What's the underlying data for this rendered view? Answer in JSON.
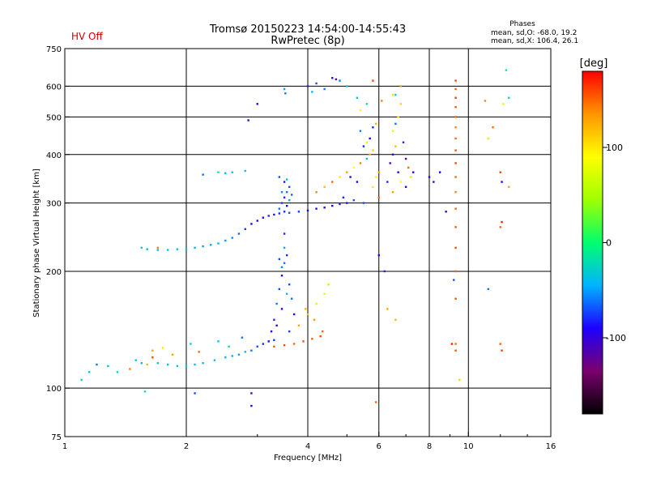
{
  "header": {
    "title_line1": "Tromsø 20150223 14:54:00-14:55:43",
    "title_line2": "RwPretec (8p)",
    "hv_status": "HV Off",
    "phases_label": "Phases",
    "phases_o": "mean, sd,O: -68.0, 19.2",
    "phases_x": "mean, sd,X: 106.4, 26.1"
  },
  "colorbar": {
    "unit_label": "[deg]",
    "range": [
      -180,
      180
    ],
    "ticks": [
      {
        "value": 100,
        "label": "100"
      },
      {
        "value": 0,
        "label": "0"
      },
      {
        "value": -100,
        "label": "-100"
      }
    ],
    "colors": [
      "#000000",
      "#7a006e",
      "#1e00ff",
      "#00b4ff",
      "#00ff6e",
      "#a0ff00",
      "#ffff00",
      "#ff9600",
      "#ff0000"
    ]
  },
  "chart_data": {
    "type": "scatter",
    "title": "Tromsø 20150223 14:54:00-14:55:43",
    "subtitle": "RwPretec (8p)",
    "xlabel": "Frequency [MHz]",
    "ylabel": "Stationary phase Virtual Height [km]",
    "x_scale": "log",
    "y_scale": "log",
    "xlim": [
      1,
      16
    ],
    "ylim": [
      75,
      750
    ],
    "x_ticks": [
      {
        "value": 1,
        "label": "1"
      },
      {
        "value": 2,
        "label": "2"
      },
      {
        "value": 4,
        "label": "4"
      },
      {
        "value": 6,
        "label": "6"
      },
      {
        "value": 8,
        "label": "8"
      },
      {
        "value": 10,
        "label": "10"
      },
      {
        "value": 16,
        "label": "16"
      }
    ],
    "y_ticks": [
      {
        "value": 75,
        "label": "75"
      },
      {
        "value": 100,
        "label": "100"
      },
      {
        "value": 200,
        "label": "200"
      },
      {
        "value": 300,
        "label": "300"
      },
      {
        "value": 400,
        "label": "400"
      },
      {
        "value": 500,
        "label": "500"
      },
      {
        "value": 600,
        "label": "600"
      },
      {
        "value": 750,
        "label": "750"
      }
    ],
    "grid_x": [
      2,
      4,
      6,
      8,
      10
    ],
    "grid_y": [
      100,
      200,
      300,
      400,
      500,
      600
    ],
    "color_by": "phase_deg",
    "series": [
      {
        "points": [
          [
            1.1,
            105,
            -30
          ],
          [
            1.15,
            110,
            -40
          ],
          [
            1.2,
            115,
            -60
          ],
          [
            1.28,
            114,
            -35
          ],
          [
            1.35,
            110,
            -25
          ],
          [
            1.45,
            112,
            140
          ],
          [
            1.5,
            118,
            -30
          ],
          [
            1.55,
            116,
            -40
          ],
          [
            1.6,
            115,
            120
          ],
          [
            1.7,
            116,
            -35
          ],
          [
            1.8,
            115,
            -40
          ],
          [
            1.9,
            114,
            -38
          ],
          [
            2.0,
            114,
            -35
          ],
          [
            2.1,
            115,
            -38
          ],
          [
            2.2,
            116,
            -40
          ],
          [
            2.35,
            118,
            -42
          ],
          [
            2.5,
            120,
            -45
          ],
          [
            2.6,
            121,
            -40
          ],
          [
            2.7,
            122,
            -50
          ],
          [
            2.8,
            124,
            -45
          ],
          [
            2.9,
            125,
            -60
          ],
          [
            3.0,
            128,
            -70
          ],
          [
            3.1,
            130,
            -80
          ],
          [
            3.2,
            132,
            -90
          ],
          [
            3.3,
            133,
            -75
          ],
          [
            1.65,
            125,
            130
          ],
          [
            1.75,
            127,
            100
          ],
          [
            1.85,
            122,
            130
          ],
          [
            2.05,
            130,
            -30
          ],
          [
            2.15,
            124,
            150
          ],
          [
            2.4,
            132,
            -40
          ],
          [
            2.55,
            128,
            -20
          ],
          [
            2.75,
            135,
            -60
          ]
        ]
      },
      {
        "points": [
          [
            3.25,
            140,
            -90
          ],
          [
            3.3,
            150,
            -80
          ],
          [
            3.35,
            165,
            -60
          ],
          [
            3.4,
            180,
            -70
          ],
          [
            3.45,
            195,
            -90
          ],
          [
            3.5,
            210,
            -60
          ],
          [
            3.55,
            220,
            -80
          ],
          [
            3.4,
            215,
            -70
          ],
          [
            3.5,
            230,
            -50
          ],
          [
            3.45,
            160,
            -95
          ],
          [
            3.55,
            175,
            -40
          ],
          [
            3.6,
            185,
            -70
          ],
          [
            3.65,
            170,
            -60
          ],
          [
            3.7,
            155,
            -90
          ],
          [
            3.35,
            145,
            -100
          ],
          [
            3.5,
            250,
            -80
          ],
          [
            3.45,
            205,
            -55
          ],
          [
            3.6,
            140,
            -75
          ]
        ]
      },
      {
        "points": [
          [
            3.3,
            128,
            155
          ],
          [
            3.5,
            129,
            160
          ],
          [
            3.7,
            130,
            150
          ],
          [
            3.9,
            132,
            155
          ],
          [
            4.1,
            134,
            150
          ],
          [
            4.3,
            136,
            160
          ],
          [
            3.8,
            145,
            130
          ],
          [
            4.0,
            155,
            120
          ],
          [
            4.2,
            165,
            100
          ],
          [
            4.4,
            175,
            80
          ],
          [
            4.5,
            185,
            60
          ],
          [
            4.35,
            140,
            150
          ],
          [
            4.15,
            150,
            135
          ],
          [
            3.95,
            160,
            125
          ]
        ]
      },
      {
        "points": [
          [
            1.55,
            230,
            -40
          ],
          [
            1.6,
            228,
            -45
          ],
          [
            1.7,
            227,
            -40
          ],
          [
            1.8,
            227,
            -42
          ],
          [
            1.9,
            228,
            -45
          ],
          [
            2.0,
            228,
            -40
          ],
          [
            2.1,
            230,
            -45
          ],
          [
            2.2,
            232,
            -50
          ],
          [
            2.3,
            234,
            -48
          ],
          [
            2.4,
            236,
            -45
          ],
          [
            2.5,
            240,
            -52
          ],
          [
            2.6,
            244,
            -55
          ],
          [
            2.7,
            250,
            -65
          ],
          [
            2.8,
            257,
            -75
          ],
          [
            2.9,
            265,
            -90
          ],
          [
            3.0,
            270,
            -100
          ],
          [
            3.1,
            275,
            -90
          ],
          [
            3.2,
            278,
            -80
          ],
          [
            3.3,
            280,
            -85
          ],
          [
            3.4,
            282,
            -80
          ],
          [
            3.6,
            283,
            -70
          ],
          [
            3.8,
            285,
            -75
          ],
          [
            4.0,
            287,
            -90
          ],
          [
            4.2,
            290,
            -95
          ],
          [
            4.4,
            292,
            -100
          ],
          [
            4.6,
            295,
            -90
          ],
          [
            4.8,
            298,
            -80
          ],
          [
            5.0,
            300,
            -85
          ],
          [
            5.2,
            305,
            -70
          ]
        ]
      },
      {
        "points": [
          [
            3.4,
            290,
            -60
          ],
          [
            3.45,
            300,
            -75
          ],
          [
            3.5,
            310,
            -80
          ],
          [
            3.55,
            320,
            -60
          ],
          [
            3.6,
            330,
            -70
          ],
          [
            3.5,
            340,
            -85
          ],
          [
            3.45,
            320,
            -55
          ],
          [
            3.55,
            295,
            -90
          ],
          [
            3.6,
            305,
            -50
          ],
          [
            3.65,
            315,
            -65
          ],
          [
            3.5,
            285,
            -80
          ],
          [
            3.4,
            350,
            -70
          ],
          [
            3.55,
            345,
            -40
          ]
        ]
      },
      {
        "points": [
          [
            4.2,
            320,
            140
          ],
          [
            4.4,
            330,
            120
          ],
          [
            4.6,
            340,
            150
          ],
          [
            4.8,
            350,
            100
          ],
          [
            5.0,
            360,
            130
          ],
          [
            5.2,
            370,
            90
          ],
          [
            5.4,
            380,
            140
          ],
          [
            5.6,
            390,
            -40
          ],
          [
            5.7,
            400,
            120
          ],
          [
            5.5,
            420,
            -80
          ],
          [
            5.6,
            430,
            80
          ],
          [
            5.7,
            440,
            -90
          ],
          [
            5.8,
            410,
            110
          ],
          [
            5.9,
            350,
            90
          ],
          [
            6.0,
            360,
            130
          ],
          [
            6.0,
            310,
            150
          ],
          [
            5.8,
            330,
            100
          ],
          [
            5.5,
            300,
            -70
          ],
          [
            5.3,
            340,
            -90
          ],
          [
            5.1,
            350,
            -100
          ],
          [
            4.9,
            310,
            -80
          ],
          [
            5.4,
            460,
            -60
          ],
          [
            5.8,
            470,
            -80
          ],
          [
            5.9,
            480,
            120
          ]
        ]
      },
      {
        "points": [
          [
            6.4,
            380,
            -110
          ],
          [
            6.5,
            400,
            -100
          ],
          [
            6.6,
            420,
            120
          ],
          [
            6.7,
            360,
            -90
          ],
          [
            6.8,
            340,
            90
          ],
          [
            6.9,
            430,
            -80
          ],
          [
            7.0,
            390,
            -120
          ],
          [
            7.1,
            370,
            150
          ],
          [
            7.3,
            360,
            -100
          ],
          [
            6.5,
            460,
            80
          ],
          [
            6.6,
            480,
            -60
          ],
          [
            6.7,
            500,
            100
          ],
          [
            6.8,
            540,
            110
          ],
          [
            6.6,
            570,
            -30
          ],
          [
            7.0,
            330,
            -90
          ],
          [
            7.2,
            350,
            100
          ],
          [
            6.3,
            340,
            -80
          ],
          [
            6.5,
            320,
            130
          ]
        ]
      },
      {
        "points": [
          [
            9.3,
            620,
            160
          ],
          [
            9.3,
            590,
            150
          ],
          [
            9.3,
            560,
            160
          ],
          [
            9.3,
            530,
            155
          ],
          [
            9.3,
            500,
            150
          ],
          [
            9.3,
            470,
            140
          ],
          [
            9.3,
            440,
            150
          ],
          [
            9.3,
            410,
            155
          ],
          [
            9.3,
            380,
            160
          ],
          [
            9.3,
            350,
            150
          ],
          [
            9.3,
            320,
            140
          ],
          [
            9.3,
            290,
            150
          ],
          [
            9.3,
            260,
            155
          ],
          [
            9.3,
            230,
            160
          ],
          [
            9.3,
            200,
            150
          ],
          [
            9.3,
            170,
            155
          ],
          [
            9.3,
            130,
            150
          ],
          [
            9.3,
            125,
            155
          ]
        ]
      },
      {
        "points": [
          [
            3.5,
            590,
            -50
          ],
          [
            3.52,
            575,
            -60
          ],
          [
            4.0,
            600,
            -80
          ],
          [
            4.2,
            610,
            -70
          ],
          [
            4.6,
            630,
            -90
          ],
          [
            4.7,
            625,
            -110
          ],
          [
            4.4,
            590,
            -60
          ],
          [
            4.1,
            580,
            -40
          ],
          [
            5.3,
            560,
            -30
          ],
          [
            6.5,
            570,
            100
          ],
          [
            6.8,
            600,
            130
          ],
          [
            5.8,
            620,
            160
          ],
          [
            6.1,
            550,
            140
          ],
          [
            5.6,
            540,
            -20
          ]
        ]
      },
      {
        "points": [
          [
            11.0,
            550,
            140
          ],
          [
            11.5,
            470,
            150
          ],
          [
            11.2,
            440,
            100
          ],
          [
            12.2,
            540,
            70
          ],
          [
            12.6,
            560,
            -20
          ],
          [
            12.4,
            660,
            -10
          ],
          [
            12.0,
            360,
            160
          ],
          [
            12.1,
            340,
            -90
          ],
          [
            12.6,
            330,
            130
          ],
          [
            12.1,
            268,
            170
          ],
          [
            12.0,
            260,
            150
          ],
          [
            11.2,
            180,
            -60
          ],
          [
            12.0,
            130,
            150
          ],
          [
            12.1,
            125,
            160
          ],
          [
            9.5,
            105,
            110
          ],
          [
            9.1,
            130,
            170
          ]
        ]
      },
      {
        "points": [
          [
            2.4,
            360,
            -20
          ],
          [
            2.5,
            358,
            -40
          ],
          [
            2.6,
            360,
            -30
          ],
          [
            2.2,
            355,
            -60
          ],
          [
            2.8,
            363,
            -35
          ],
          [
            2.85,
            490,
            -110
          ],
          [
            3.0,
            540,
            -100
          ],
          [
            6.0,
            220,
            -90
          ],
          [
            6.2,
            200,
            -80
          ],
          [
            6.3,
            160,
            130
          ],
          [
            6.6,
            150,
            120
          ],
          [
            8.0,
            350,
            -100
          ],
          [
            8.5,
            360,
            -90
          ],
          [
            8.2,
            340,
            -110
          ],
          [
            8.8,
            285,
            -100
          ],
          [
            9.2,
            190,
            -70
          ],
          [
            1.7,
            230,
            140
          ],
          [
            1.65,
            120,
            160
          ],
          [
            1.58,
            98,
            -20
          ],
          [
            2.1,
            97,
            -70
          ],
          [
            2.9,
            97,
            -110
          ],
          [
            2.9,
            90,
            -90
          ],
          [
            5.9,
            92,
            150
          ],
          [
            5.0,
            600,
            -30
          ],
          [
            4.8,
            620,
            -60
          ],
          [
            5.4,
            520,
            90
          ]
        ]
      }
    ]
  }
}
